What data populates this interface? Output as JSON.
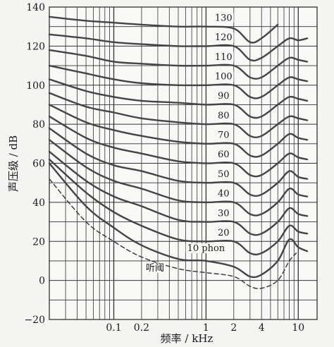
{
  "chart_data": {
    "type": "line",
    "title": "",
    "xlabel": "频率 / kHz",
    "ylabel": "声压级 / dB",
    "x_scale": "log",
    "xlim": [
      0.02,
      16
    ],
    "ylim": [
      -20,
      140
    ],
    "grid": true,
    "x_ticks": [
      {
        "value": 0.1,
        "label": "0.1"
      },
      {
        "value": 0.2,
        "label": "0.2"
      },
      {
        "value": 1,
        "label": "1"
      },
      {
        "value": 2,
        "label": "2"
      },
      {
        "value": 4,
        "label": "4"
      },
      {
        "value": 10,
        "label": "10"
      }
    ],
    "y_ticks": [
      -20,
      0,
      20,
      40,
      60,
      80,
      100,
      120,
      140
    ],
    "series": [
      {
        "name": "10 phon",
        "style": "solid",
        "x": [
          0.02,
          0.05,
          0.1,
          0.2,
          0.5,
          1,
          2,
          3,
          4,
          6,
          8,
          10,
          12.5
        ],
        "y": [
          60,
          38,
          27,
          18,
          11,
          10,
          7,
          2,
          3,
          10,
          21,
          17,
          15
        ]
      },
      {
        "name": "20",
        "style": "solid",
        "x": [
          0.02,
          0.05,
          0.1,
          0.2,
          0.5,
          1,
          2,
          3,
          4,
          6,
          8,
          10,
          12.5
        ],
        "y": [
          62,
          45,
          35,
          28,
          21,
          20,
          20,
          14,
          14,
          20,
          28,
          25,
          24
        ]
      },
      {
        "name": "30",
        "style": "solid",
        "x": [
          0.02,
          0.05,
          0.1,
          0.2,
          0.5,
          1,
          2,
          3,
          4,
          6,
          8,
          10,
          12.5
        ],
        "y": [
          66,
          51,
          43,
          38,
          31,
          30,
          30,
          24,
          24,
          30,
          37,
          34,
          33
        ]
      },
      {
        "name": "40",
        "style": "solid",
        "x": [
          0.02,
          0.05,
          0.1,
          0.2,
          0.5,
          1,
          2,
          3,
          4,
          6,
          8,
          10,
          12.5
        ],
        "y": [
          72,
          58,
          51,
          47,
          41,
          40,
          40,
          34,
          34,
          40,
          47,
          44,
          43
        ]
      },
      {
        "name": "50",
        "style": "solid",
        "x": [
          0.02,
          0.05,
          0.1,
          0.2,
          0.5,
          1,
          2,
          3,
          4,
          6,
          8,
          10,
          12.5
        ],
        "y": [
          78,
          65,
          59,
          56,
          51,
          50,
          50,
          44,
          44,
          50,
          56,
          53,
          52
        ]
      },
      {
        "name": "60",
        "style": "solid",
        "x": [
          0.02,
          0.05,
          0.1,
          0.2,
          0.5,
          1,
          2,
          3,
          4,
          6,
          8,
          10,
          12.5
        ],
        "y": [
          84,
          73,
          68,
          65,
          61,
          60,
          60,
          54,
          54,
          60,
          65,
          63,
          62
        ]
      },
      {
        "name": "70",
        "style": "solid",
        "x": [
          0.02,
          0.05,
          0.1,
          0.2,
          0.5,
          1,
          2,
          3,
          4,
          6,
          8,
          10,
          12.5
        ],
        "y": [
          90,
          81,
          77,
          74,
          71,
          70,
          70,
          64,
          64,
          70,
          75,
          73,
          72
        ]
      },
      {
        "name": "80",
        "style": "solid",
        "x": [
          0.02,
          0.05,
          0.1,
          0.2,
          0.5,
          1,
          2,
          3,
          4,
          6,
          8,
          10,
          12.5
        ],
        "y": [
          96,
          89,
          86,
          83,
          81,
          80,
          80,
          74,
          74,
          80,
          84,
          83,
          82
        ]
      },
      {
        "name": "90",
        "style": "solid",
        "x": [
          0.02,
          0.05,
          0.1,
          0.2,
          0.5,
          1,
          2,
          3,
          4,
          6,
          8,
          10,
          12.5
        ],
        "y": [
          103,
          97,
          94,
          92,
          91,
          90,
          90,
          84,
          84,
          90,
          94,
          93,
          92
        ]
      },
      {
        "name": "100",
        "style": "solid",
        "x": [
          0.02,
          0.05,
          0.1,
          0.2,
          0.5,
          1,
          2,
          3,
          4,
          6,
          8,
          10,
          12.5
        ],
        "y": [
          110,
          106,
          103,
          101,
          100,
          100,
          100,
          94,
          94,
          100,
          104,
          103,
          102
        ]
      },
      {
        "name": "110",
        "style": "solid",
        "x": [
          0.02,
          0.05,
          0.1,
          0.2,
          0.5,
          1,
          2,
          3,
          4,
          6,
          8,
          10,
          12.5
        ],
        "y": [
          118,
          115,
          112,
          111,
          110,
          110,
          110,
          104,
          104,
          110,
          114,
          113,
          112
        ]
      },
      {
        "name": "120",
        "style": "solid",
        "x": [
          0.02,
          0.05,
          0.1,
          0.2,
          0.5,
          1,
          2,
          3,
          4,
          6,
          8,
          10,
          12.5
        ],
        "y": [
          126,
          124,
          122,
          121,
          120,
          120,
          120,
          113,
          114,
          120,
          124,
          123,
          124
        ]
      },
      {
        "name": "130",
        "style": "solid",
        "x": [
          0.02,
          0.05,
          0.1,
          0.2,
          0.5,
          1,
          2,
          3,
          4,
          6
        ],
        "y": [
          135,
          133,
          132,
          131,
          130,
          130,
          129,
          122,
          124,
          131
        ]
      },
      {
        "name": "听阈",
        "style": "dashed",
        "x": [
          0.02,
          0.05,
          0.1,
          0.2,
          0.5,
          1,
          2,
          3,
          4,
          6,
          8,
          9.5
        ],
        "y": [
          52,
          30,
          20,
          12,
          6,
          4,
          2,
          -3,
          -4,
          0,
          10,
          14
        ]
      }
    ]
  }
}
